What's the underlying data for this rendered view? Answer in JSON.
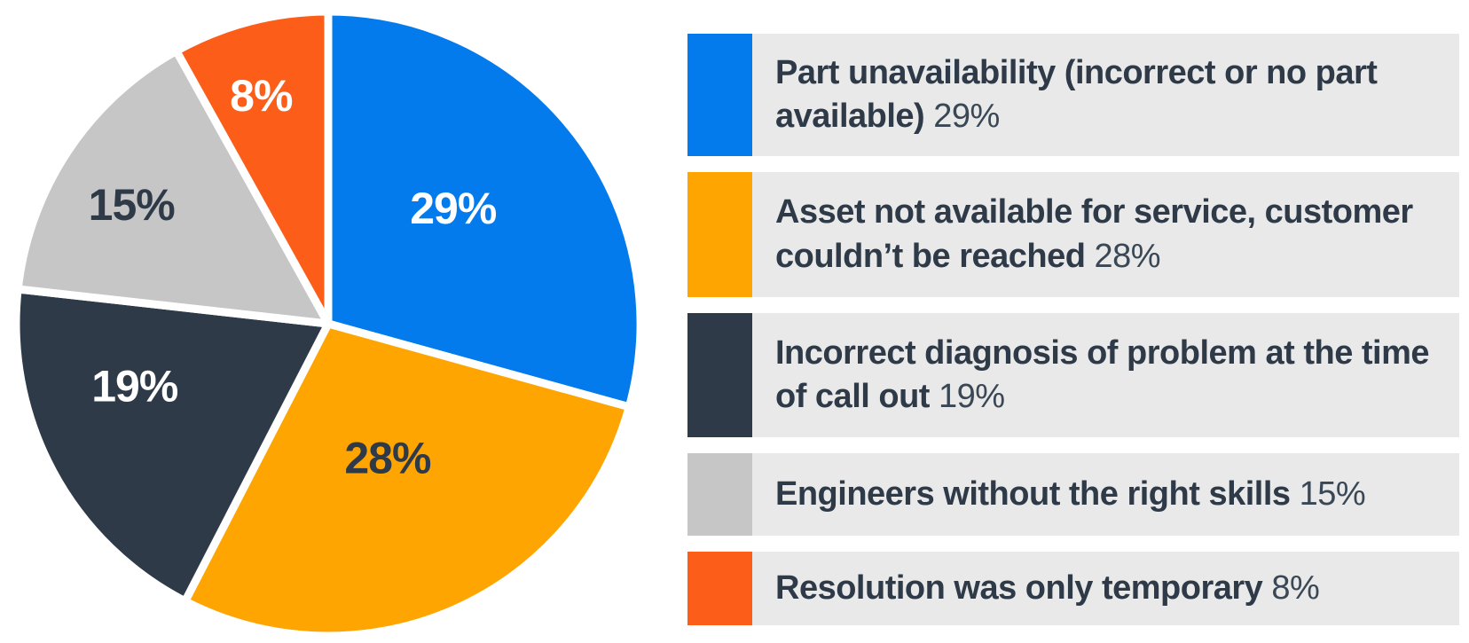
{
  "colors": {
    "blue": "#037BEC",
    "amber": "#FFA502",
    "navy": "#2E3A48",
    "gray": "#C6C6C6",
    "orange": "#FC5D18",
    "legend_bar_bg": "#E9E9E9",
    "text": "#2E3A48",
    "background": "#FFFFFF",
    "slice_gap": "#FFFFFF"
  },
  "chart_data": {
    "type": "pie",
    "title": "",
    "start_angle_deg": 0,
    "direction": "clockwise",
    "grid": false,
    "legend_position": "right",
    "categories": [
      "Part unavailability (incorrect or no part available)",
      "Asset not available for service, customer couldn’t be reached",
      "Incorrect diagnosis of problem at the time of call out",
      "Engineers without the right skills",
      "Resolution was only temporary"
    ],
    "values": [
      29,
      28,
      19,
      15,
      8
    ],
    "slices": [
      {
        "key": "part-unavailability",
        "label": "Part unavailability (incorrect or no part available)",
        "value": 29,
        "data_label": "29%",
        "color": "#037BEC",
        "label_color": "#FFFFFF",
        "lx": 0.4,
        "ly": -0.37
      },
      {
        "key": "asset-not-available",
        "label": "Asset not available for service, customer couldn’t be reached",
        "value": 28,
        "data_label": "28%",
        "color": "#FFA502",
        "label_color": "#2E3A48",
        "lx": 0.19,
        "ly": 0.43
      },
      {
        "key": "incorrect-diagnosis",
        "label": "Incorrect diagnosis of problem at the time of call out",
        "value": 19,
        "data_label": "19%",
        "color": "#2E3A48",
        "label_color": "#FFFFFF",
        "lx": -0.62,
        "ly": 0.2
      },
      {
        "key": "engineers-skills",
        "label": "Engineers without the right skills",
        "value": 15,
        "data_label": "15%",
        "color": "#C6C6C6",
        "label_color": "#2E3A48",
        "lx": -0.63,
        "ly": -0.38
      },
      {
        "key": "temporary-resolution",
        "label": "Resolution was only temporary",
        "value": 8,
        "data_label": "8%",
        "color": "#FC5D18",
        "label_color": "#FFFFFF",
        "lx": -0.215,
        "ly": -0.73
      }
    ]
  },
  "legend": {
    "position": "right",
    "items": [
      {
        "label": "Part unavailability (incorrect or no part available)",
        "pct": "29%",
        "color": "#037BEC"
      },
      {
        "label": "Asset not available for service, customer couldn’t be reached",
        "pct": "28%",
        "color": "#FFA502"
      },
      {
        "label": "Incorrect diagnosis of problem at the time of call out",
        "pct": "19%",
        "color": "#2E3A48"
      },
      {
        "label": "Engineers without the right skills",
        "pct": "15%",
        "color": "#C6C6C6"
      },
      {
        "label": "Resolution was only temporary",
        "pct": "8%",
        "color": "#FC5D18"
      }
    ]
  }
}
